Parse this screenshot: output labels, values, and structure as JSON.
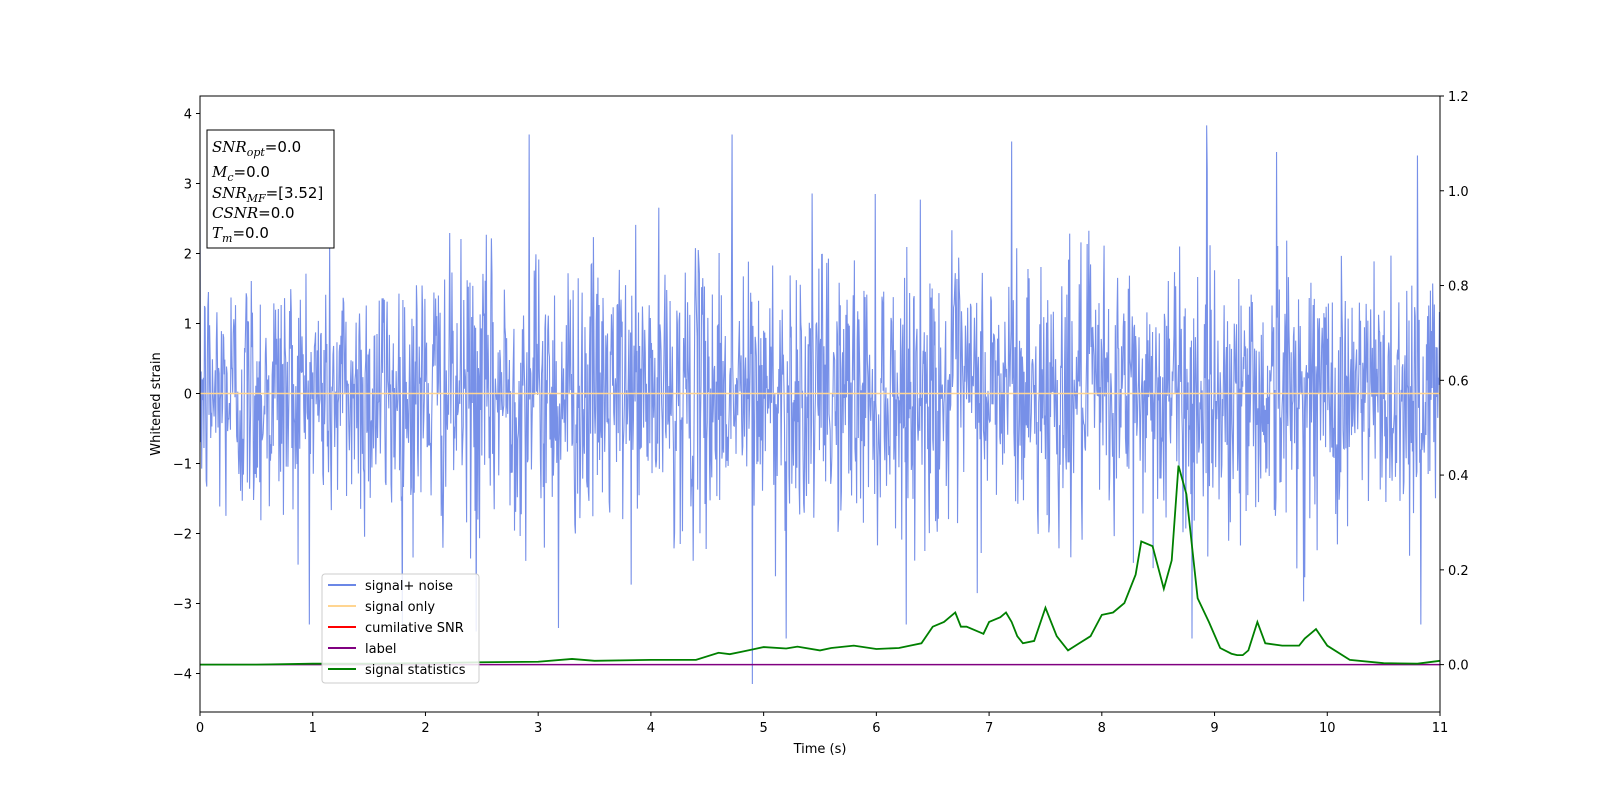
{
  "chart_data": {
    "type": "line",
    "xlabel": "Time (s)",
    "ylabel": "Whitened strain",
    "xlim": [
      0,
      11
    ],
    "ylim": [
      -4.55,
      4.25
    ],
    "y2lim": [
      -0.1,
      1.2
    ],
    "x_ticks": [
      0,
      1,
      2,
      3,
      4,
      5,
      6,
      7,
      8,
      9,
      10,
      11
    ],
    "y_ticks": [
      -4,
      -3,
      -2,
      -1,
      0,
      1,
      2,
      3,
      4
    ],
    "y_tick_labels": [
      "−4",
      "−3",
      "−2",
      "−1",
      "0",
      "1",
      "2",
      "3",
      "4"
    ],
    "y2_ticks": [
      0.0,
      0.2,
      0.4,
      0.6,
      0.8,
      1.0,
      1.2
    ],
    "y2_tick_labels": [
      "0.0",
      "0.2",
      "0.4",
      "0.6",
      "0.8",
      "1.0",
      "1.2"
    ],
    "grid": false,
    "legend_position": "lower-left",
    "legend": [
      {
        "name": "signal+ noise",
        "color": "#6b87e6"
      },
      {
        "name": "signal only",
        "color": "#ffd591"
      },
      {
        "name": "cumilative SNR",
        "color": "#ff0000"
      },
      {
        "name": "label",
        "color": "#800080"
      },
      {
        "name": "signal statistics",
        "color": "#008000"
      }
    ],
    "annotation": [
      {
        "sym": "SNR",
        "sub": "opt",
        "val": "=0.0"
      },
      {
        "sym": "M",
        "sub": "c",
        "val": "=0.0"
      },
      {
        "sym": "SNR",
        "sub": "MF",
        "val": "=[3.52]"
      },
      {
        "sym": "CSNR",
        "sub": "",
        "val": "=0.0"
      },
      {
        "sym": "T",
        "sub": "m",
        "val": "=0.0"
      }
    ],
    "noise": {
      "axis": "left",
      "sample_rate_hz": 200,
      "std": 0.95,
      "spikes": [
        {
          "x": 2.92,
          "y": 3.7
        },
        {
          "x": 4.72,
          "y": 3.7
        },
        {
          "x": 8.93,
          "y": 3.83
        },
        {
          "x": 7.2,
          "y": 3.6
        },
        {
          "x": 9.55,
          "y": 3.45
        },
        {
          "x": 10.8,
          "y": 3.4
        },
        {
          "x": 4.9,
          "y": -4.15
        },
        {
          "x": 5.2,
          "y": -3.5
        },
        {
          "x": 2.45,
          "y": -3.4
        },
        {
          "x": 3.18,
          "y": -3.35
        },
        {
          "x": 8.8,
          "y": -3.5
        },
        {
          "x": 10.83,
          "y": -3.3
        }
      ]
    },
    "series": [
      {
        "name": "signal only",
        "axis": "left",
        "x": [
          0,
          11
        ],
        "y": [
          0,
          0
        ]
      },
      {
        "name": "label",
        "axis": "right",
        "x": [
          0,
          11
        ],
        "y": [
          0,
          0
        ]
      },
      {
        "name": "signal statistics",
        "axis": "right",
        "x": [
          0,
          0.5,
          1.0,
          1.5,
          2.0,
          2.5,
          3.0,
          3.3,
          3.5,
          4.0,
          4.4,
          4.6,
          4.7,
          4.8,
          4.9,
          5.0,
          5.2,
          5.3,
          5.5,
          5.6,
          5.8,
          6.0,
          6.2,
          6.3,
          6.4,
          6.5,
          6.6,
          6.7,
          6.75,
          6.8,
          6.9,
          6.95,
          7.0,
          7.1,
          7.15,
          7.2,
          7.25,
          7.3,
          7.4,
          7.5,
          7.6,
          7.7,
          7.8,
          7.9,
          8.0,
          8.1,
          8.2,
          8.3,
          8.35,
          8.45,
          8.55,
          8.62,
          8.68,
          8.75,
          8.85,
          8.95,
          9.05,
          9.15,
          9.2,
          9.25,
          9.3,
          9.38,
          9.45,
          9.6,
          9.75,
          9.8,
          9.9,
          10.0,
          10.2,
          10.5,
          10.8,
          11.0
        ],
        "y": [
          0.0,
          0.0,
          0.002,
          0.002,
          0.003,
          0.005,
          0.006,
          0.012,
          0.008,
          0.01,
          0.01,
          0.025,
          0.022,
          0.027,
          0.032,
          0.037,
          0.034,
          0.038,
          0.03,
          0.035,
          0.04,
          0.033,
          0.035,
          0.04,
          0.045,
          0.08,
          0.09,
          0.11,
          0.08,
          0.08,
          0.07,
          0.065,
          0.09,
          0.1,
          0.11,
          0.09,
          0.06,
          0.045,
          0.05,
          0.12,
          0.06,
          0.03,
          0.045,
          0.06,
          0.105,
          0.11,
          0.13,
          0.19,
          0.26,
          0.25,
          0.16,
          0.22,
          0.42,
          0.36,
          0.14,
          0.09,
          0.035,
          0.023,
          0.02,
          0.02,
          0.03,
          0.09,
          0.045,
          0.04,
          0.04,
          0.055,
          0.075,
          0.04,
          0.01,
          0.003,
          0.002,
          0.008
        ]
      }
    ]
  }
}
